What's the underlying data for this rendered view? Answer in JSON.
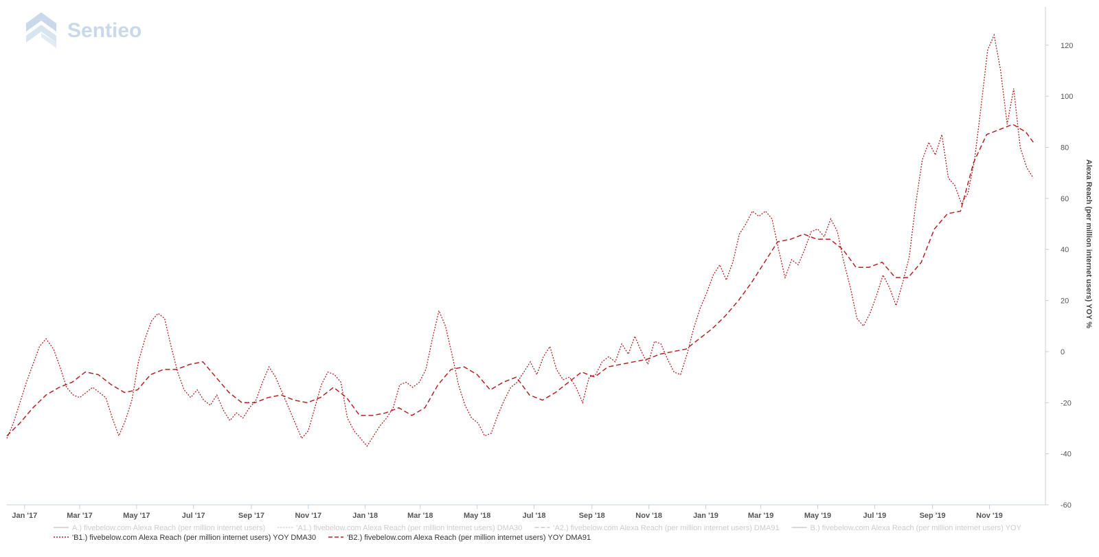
{
  "logo": {
    "text": "Sentieo",
    "color": "#c9d9e9"
  },
  "chart_data": {
    "type": "line",
    "title": "",
    "xlabel": "",
    "ylabel": "Alexa Reach (per million internet users) YOY %",
    "y_axis_position": "right",
    "ylim": [
      -60,
      135
    ],
    "yticks": [
      -60,
      -40,
      -20,
      0,
      20,
      40,
      60,
      80,
      100,
      120
    ],
    "xlim": [
      "2016-12-13",
      "2019-12-31"
    ],
    "xticks": [
      {
        "date": "2017-01-01",
        "label": "Jan '17"
      },
      {
        "date": "2017-03-01",
        "label": "Mar '17"
      },
      {
        "date": "2017-05-01",
        "label": "May '17"
      },
      {
        "date": "2017-07-01",
        "label": "Jul '17"
      },
      {
        "date": "2017-09-01",
        "label": "Sep '17"
      },
      {
        "date": "2017-11-01",
        "label": "Nov '17"
      },
      {
        "date": "2018-01-01",
        "label": "Jan '18"
      },
      {
        "date": "2018-03-01",
        "label": "Mar '18"
      },
      {
        "date": "2018-05-01",
        "label": "May '18"
      },
      {
        "date": "2018-07-01",
        "label": "Jul '18"
      },
      {
        "date": "2018-09-01",
        "label": "Sep '18"
      },
      {
        "date": "2018-11-01",
        "label": "Nov '18"
      },
      {
        "date": "2019-01-01",
        "label": "Jan '19"
      },
      {
        "date": "2019-03-01",
        "label": "Mar '19"
      },
      {
        "date": "2019-05-01",
        "label": "May '19"
      },
      {
        "date": "2019-07-01",
        "label": "Jul '19"
      },
      {
        "date": "2019-09-01",
        "label": "Sep '19"
      },
      {
        "date": "2019-11-01",
        "label": "Nov '19"
      }
    ],
    "grid": false,
    "legend_position": "bottom",
    "legend": [
      {
        "name": "A.) fivebelow.com Alexa Reach (per million internet users)",
        "style": "solid",
        "color": "#cccccc",
        "active": false
      },
      {
        "name": "'A1.) fivebelow.com Alexa Reach (per million internet users) DMA30",
        "style": "dotted",
        "color": "#cccccc",
        "active": false
      },
      {
        "name": "'A2.) fivebelow.com Alexa Reach (per million internet users) DMA91",
        "style": "dashed",
        "color": "#cccccc",
        "active": false
      },
      {
        "name": "B.) fivebelow.com Alexa Reach (per million internet users) YOY",
        "style": "solid",
        "color": "#cccccc",
        "active": false
      },
      {
        "name": "'B1.) fivebelow.com Alexa Reach (per million internet users) YOY DMA30",
        "style": "dotted",
        "color": "#b22222",
        "active": true
      },
      {
        "name": "'B2.) fivebelow.com Alexa Reach (per million internet users) YOY DMA91",
        "style": "dashed",
        "color": "#b22222",
        "active": true
      }
    ],
    "series": [
      {
        "name": "'B1.) fivebelow.com Alexa Reach (per million internet users) YOY DMA30",
        "color": "#b22222",
        "dash": "dotted",
        "points": [
          [
            "2016-12-13",
            -34
          ],
          [
            "2016-12-20",
            -28
          ],
          [
            "2016-12-27",
            -20
          ],
          [
            "2017-01-03",
            -12
          ],
          [
            "2017-01-10",
            -5
          ],
          [
            "2017-01-17",
            2
          ],
          [
            "2017-01-24",
            5
          ],
          [
            "2017-02-01",
            1
          ],
          [
            "2017-02-08",
            -6
          ],
          [
            "2017-02-15",
            -14
          ],
          [
            "2017-02-22",
            -17
          ],
          [
            "2017-03-01",
            -18
          ],
          [
            "2017-03-08",
            -16
          ],
          [
            "2017-03-15",
            -14
          ],
          [
            "2017-03-22",
            -16
          ],
          [
            "2017-03-29",
            -18
          ],
          [
            "2017-04-05",
            -26
          ],
          [
            "2017-04-12",
            -33
          ],
          [
            "2017-04-19",
            -27
          ],
          [
            "2017-04-26",
            -19
          ],
          [
            "2017-05-03",
            -4
          ],
          [
            "2017-05-10",
            5
          ],
          [
            "2017-05-17",
            12
          ],
          [
            "2017-05-24",
            15
          ],
          [
            "2017-05-31",
            13
          ],
          [
            "2017-06-07",
            2
          ],
          [
            "2017-06-14",
            -8
          ],
          [
            "2017-06-21",
            -15
          ],
          [
            "2017-06-28",
            -18
          ],
          [
            "2017-07-05",
            -15
          ],
          [
            "2017-07-12",
            -19
          ],
          [
            "2017-07-19",
            -21
          ],
          [
            "2017-07-26",
            -17
          ],
          [
            "2017-08-02",
            -23
          ],
          [
            "2017-08-09",
            -27
          ],
          [
            "2017-08-16",
            -24
          ],
          [
            "2017-08-23",
            -26
          ],
          [
            "2017-08-30",
            -22
          ],
          [
            "2017-09-06",
            -19
          ],
          [
            "2017-09-13",
            -12
          ],
          [
            "2017-09-20",
            -6
          ],
          [
            "2017-09-27",
            -10
          ],
          [
            "2017-10-04",
            -16
          ],
          [
            "2017-10-11",
            -22
          ],
          [
            "2017-10-18",
            -28
          ],
          [
            "2017-10-25",
            -34
          ],
          [
            "2017-11-01",
            -31
          ],
          [
            "2017-11-08",
            -22
          ],
          [
            "2017-11-15",
            -13
          ],
          [
            "2017-11-22",
            -8
          ],
          [
            "2017-11-29",
            -9
          ],
          [
            "2017-12-06",
            -12
          ],
          [
            "2017-12-13",
            -26
          ],
          [
            "2017-12-20",
            -31
          ],
          [
            "2017-12-27",
            -34
          ],
          [
            "2018-01-03",
            -37
          ],
          [
            "2018-01-10",
            -33
          ],
          [
            "2018-01-17",
            -29
          ],
          [
            "2018-01-24",
            -26
          ],
          [
            "2018-01-31",
            -22
          ],
          [
            "2018-02-07",
            -13
          ],
          [
            "2018-02-14",
            -12
          ],
          [
            "2018-02-21",
            -14
          ],
          [
            "2018-02-28",
            -12
          ],
          [
            "2018-03-07",
            -7
          ],
          [
            "2018-03-14",
            5
          ],
          [
            "2018-03-21",
            16
          ],
          [
            "2018-03-28",
            10
          ],
          [
            "2018-04-04",
            -1
          ],
          [
            "2018-04-11",
            -13
          ],
          [
            "2018-04-18",
            -21
          ],
          [
            "2018-04-25",
            -26
          ],
          [
            "2018-05-02",
            -28
          ],
          [
            "2018-05-09",
            -33
          ],
          [
            "2018-05-16",
            -32
          ],
          [
            "2018-05-23",
            -25
          ],
          [
            "2018-05-30",
            -19
          ],
          [
            "2018-06-06",
            -14
          ],
          [
            "2018-06-13",
            -12
          ],
          [
            "2018-06-20",
            -8
          ],
          [
            "2018-06-27",
            -4
          ],
          [
            "2018-07-04",
            -9
          ],
          [
            "2018-07-11",
            -2
          ],
          [
            "2018-07-18",
            2
          ],
          [
            "2018-07-25",
            -7
          ],
          [
            "2018-08-01",
            -11
          ],
          [
            "2018-08-08",
            -10
          ],
          [
            "2018-08-15",
            -14
          ],
          [
            "2018-08-22",
            -20
          ],
          [
            "2018-08-29",
            -10
          ],
          [
            "2018-09-05",
            -9
          ],
          [
            "2018-09-12",
            -4
          ],
          [
            "2018-09-19",
            -2
          ],
          [
            "2018-09-26",
            -4
          ],
          [
            "2018-10-03",
            3
          ],
          [
            "2018-10-10",
            -1
          ],
          [
            "2018-10-17",
            6
          ],
          [
            "2018-10-24",
            0
          ],
          [
            "2018-10-31",
            -5
          ],
          [
            "2018-11-07",
            4
          ],
          [
            "2018-11-14",
            3
          ],
          [
            "2018-11-21",
            -3
          ],
          [
            "2018-11-28",
            -8
          ],
          [
            "2018-12-05",
            -9
          ],
          [
            "2018-12-12",
            -1
          ],
          [
            "2018-12-19",
            9
          ],
          [
            "2018-12-26",
            17
          ],
          [
            "2019-01-02",
            23
          ],
          [
            "2019-01-09",
            30
          ],
          [
            "2019-01-16",
            34
          ],
          [
            "2019-01-23",
            28
          ],
          [
            "2019-01-30",
            35
          ],
          [
            "2019-02-06",
            46
          ],
          [
            "2019-02-13",
            50
          ],
          [
            "2019-02-20",
            55
          ],
          [
            "2019-02-27",
            53
          ],
          [
            "2019-03-06",
            55
          ],
          [
            "2019-03-13",
            52
          ],
          [
            "2019-03-20",
            40
          ],
          [
            "2019-03-27",
            29
          ],
          [
            "2019-04-03",
            36
          ],
          [
            "2019-04-10",
            34
          ],
          [
            "2019-04-17",
            40
          ],
          [
            "2019-04-24",
            47
          ],
          [
            "2019-05-01",
            48
          ],
          [
            "2019-05-08",
            45
          ],
          [
            "2019-05-15",
            52
          ],
          [
            "2019-05-22",
            47
          ],
          [
            "2019-05-29",
            35
          ],
          [
            "2019-06-05",
            25
          ],
          [
            "2019-06-12",
            13
          ],
          [
            "2019-06-19",
            10
          ],
          [
            "2019-06-26",
            15
          ],
          [
            "2019-07-03",
            22
          ],
          [
            "2019-07-10",
            30
          ],
          [
            "2019-07-17",
            25
          ],
          [
            "2019-07-24",
            18
          ],
          [
            "2019-07-31",
            27
          ],
          [
            "2019-08-07",
            37
          ],
          [
            "2019-08-14",
            58
          ],
          [
            "2019-08-21",
            75
          ],
          [
            "2019-08-28",
            82
          ],
          [
            "2019-09-04",
            77
          ],
          [
            "2019-09-11",
            85
          ],
          [
            "2019-09-18",
            68
          ],
          [
            "2019-09-25",
            65
          ],
          [
            "2019-10-02",
            58
          ],
          [
            "2019-10-09",
            62
          ],
          [
            "2019-10-16",
            75
          ],
          [
            "2019-10-23",
            96
          ],
          [
            "2019-10-30",
            118
          ],
          [
            "2019-11-06",
            124
          ],
          [
            "2019-11-13",
            110
          ],
          [
            "2019-11-20",
            89
          ],
          [
            "2019-11-27",
            103
          ],
          [
            "2019-12-04",
            80
          ],
          [
            "2019-12-11",
            72
          ],
          [
            "2019-12-18",
            68
          ]
        ]
      },
      {
        "name": "'B2.) fivebelow.com Alexa Reach (per million internet users) YOY DMA91",
        "color": "#b22222",
        "dash": "dashed",
        "points": [
          [
            "2016-12-13",
            -33
          ],
          [
            "2016-12-27",
            -28
          ],
          [
            "2017-01-10",
            -22
          ],
          [
            "2017-01-24",
            -17
          ],
          [
            "2017-02-07",
            -14
          ],
          [
            "2017-02-21",
            -12
          ],
          [
            "2017-03-07",
            -8
          ],
          [
            "2017-03-21",
            -9
          ],
          [
            "2017-04-04",
            -13
          ],
          [
            "2017-04-18",
            -16
          ],
          [
            "2017-05-02",
            -15
          ],
          [
            "2017-05-16",
            -9
          ],
          [
            "2017-05-30",
            -7
          ],
          [
            "2017-06-13",
            -7
          ],
          [
            "2017-06-27",
            -5
          ],
          [
            "2017-07-11",
            -4
          ],
          [
            "2017-07-25",
            -10
          ],
          [
            "2017-08-08",
            -16
          ],
          [
            "2017-08-22",
            -20
          ],
          [
            "2017-09-05",
            -20
          ],
          [
            "2017-09-19",
            -18
          ],
          [
            "2017-10-03",
            -17
          ],
          [
            "2017-10-17",
            -19
          ],
          [
            "2017-10-31",
            -20
          ],
          [
            "2017-11-14",
            -18
          ],
          [
            "2017-11-28",
            -14
          ],
          [
            "2017-12-12",
            -18
          ],
          [
            "2017-12-26",
            -25
          ],
          [
            "2018-01-09",
            -25
          ],
          [
            "2018-01-23",
            -24
          ],
          [
            "2018-02-06",
            -22
          ],
          [
            "2018-02-20",
            -25
          ],
          [
            "2018-03-06",
            -22
          ],
          [
            "2018-03-20",
            -13
          ],
          [
            "2018-04-03",
            -7
          ],
          [
            "2018-04-17",
            -6
          ],
          [
            "2018-05-01",
            -9
          ],
          [
            "2018-05-15",
            -15
          ],
          [
            "2018-05-29",
            -12
          ],
          [
            "2018-06-12",
            -10
          ],
          [
            "2018-06-26",
            -17
          ],
          [
            "2018-07-10",
            -19
          ],
          [
            "2018-07-24",
            -16
          ],
          [
            "2018-08-07",
            -12
          ],
          [
            "2018-08-21",
            -8
          ],
          [
            "2018-09-04",
            -10
          ],
          [
            "2018-09-18",
            -6
          ],
          [
            "2018-10-02",
            -5
          ],
          [
            "2018-10-16",
            -4
          ],
          [
            "2018-10-30",
            -3
          ],
          [
            "2018-11-13",
            -1
          ],
          [
            "2018-11-27",
            0
          ],
          [
            "2018-12-11",
            1
          ],
          [
            "2018-12-25",
            5
          ],
          [
            "2019-01-08",
            9
          ],
          [
            "2019-01-22",
            14
          ],
          [
            "2019-02-05",
            20
          ],
          [
            "2019-02-19",
            27
          ],
          [
            "2019-03-05",
            35
          ],
          [
            "2019-03-19",
            43
          ],
          [
            "2019-04-02",
            44
          ],
          [
            "2019-04-16",
            46
          ],
          [
            "2019-04-30",
            44
          ],
          [
            "2019-05-14",
            44
          ],
          [
            "2019-05-28",
            40
          ],
          [
            "2019-06-11",
            33
          ],
          [
            "2019-06-25",
            33
          ],
          [
            "2019-07-09",
            35
          ],
          [
            "2019-07-23",
            29
          ],
          [
            "2019-08-06",
            29
          ],
          [
            "2019-08-20",
            35
          ],
          [
            "2019-09-03",
            48
          ],
          [
            "2019-09-17",
            54
          ],
          [
            "2019-10-01",
            55
          ],
          [
            "2019-10-15",
            74
          ],
          [
            "2019-10-29",
            85
          ],
          [
            "2019-11-12",
            87
          ],
          [
            "2019-11-26",
            89
          ],
          [
            "2019-12-10",
            86
          ],
          [
            "2019-12-18",
            82
          ]
        ]
      }
    ]
  }
}
